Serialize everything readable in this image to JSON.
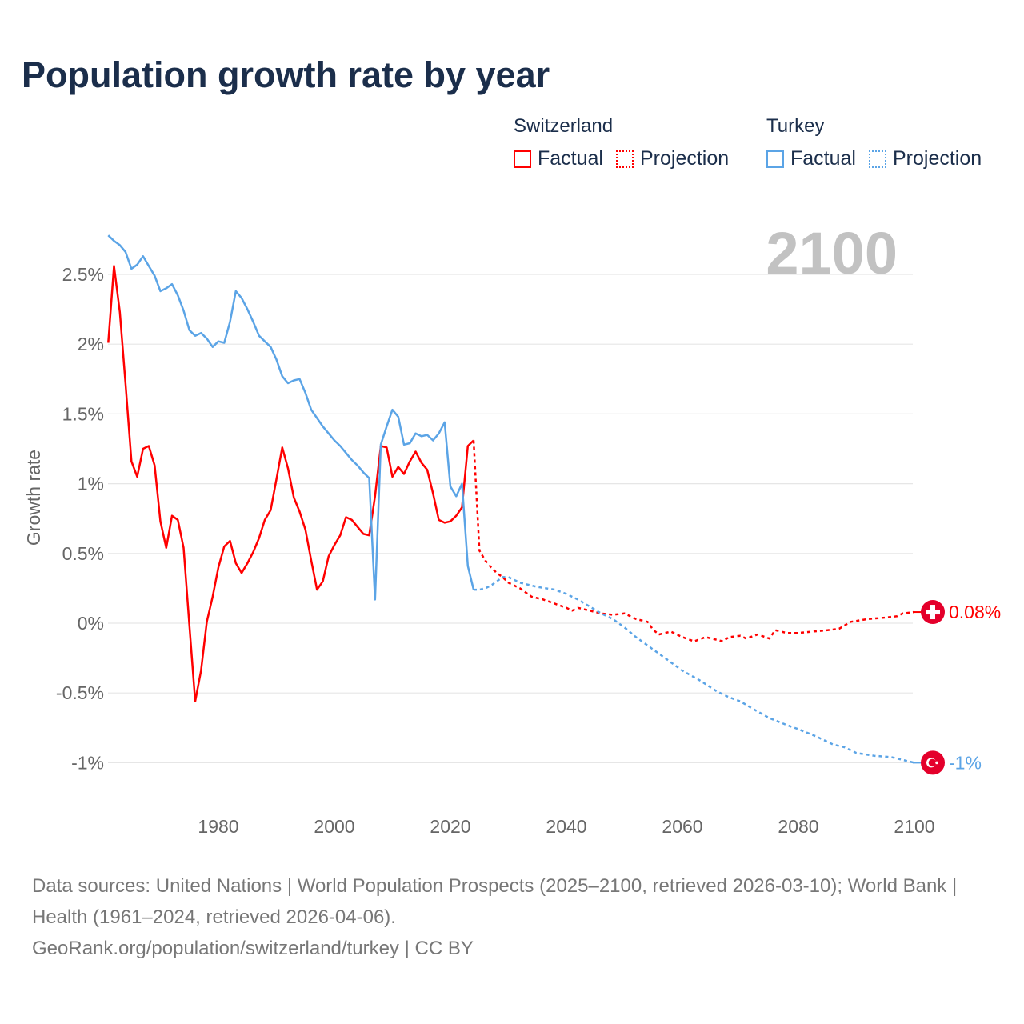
{
  "title": "Population growth rate by year",
  "legend": {
    "groups": [
      {
        "name": "Switzerland",
        "factual": "Factual",
        "projection": "Projection",
        "color": "#ff0000"
      },
      {
        "name": "Turkey",
        "factual": "Factual",
        "projection": "Projection",
        "color": "#5ba4e6"
      }
    ]
  },
  "year_watermark": "2100",
  "footer": {
    "sources": "Data sources: United Nations | World Population Prospects (2025–2100, retrieved 2026-03-10); World Bank | Health (1961–2024, retrieved 2026-04-06).",
    "credit": "GeoRank.org/population/switzerland/turkey | CC BY"
  },
  "chart_data": {
    "type": "line",
    "title": "Population growth rate by year",
    "xlabel": "",
    "ylabel": "Growth rate",
    "xlim": [
      1961,
      2100
    ],
    "ylim": [
      -1.1,
      2.8
    ],
    "x_ticks": [
      1980,
      2000,
      2020,
      2040,
      2060,
      2080,
      2100
    ],
    "x_tick_labels": [
      "1980",
      "2000",
      "2020",
      "2040",
      "2060",
      "2080",
      "2100"
    ],
    "y_ticks": [
      -1,
      -0.5,
      0,
      0.5,
      1,
      1.5,
      2,
      2.5
    ],
    "y_tick_labels": [
      "-1%",
      "-0.5%",
      "0%",
      "0.5%",
      "1%",
      "1.5%",
      "2%",
      "2.5%"
    ],
    "grid": true,
    "series": [
      {
        "name": "Switzerland",
        "kind": "Factual",
        "color": "#ff0000",
        "dashed": false,
        "x_start": 1961,
        "values": [
          2.01,
          2.56,
          2.23,
          1.71,
          1.16,
          1.05,
          1.25,
          1.27,
          1.13,
          0.73,
          0.54,
          0.77,
          0.74,
          0.54,
          -0.02,
          -0.56,
          -0.34,
          0.01,
          0.19,
          0.4,
          0.55,
          0.59,
          0.43,
          0.36,
          0.43,
          0.51,
          0.61,
          0.74,
          0.81,
          1.03,
          1.26,
          1.11,
          0.9,
          0.8,
          0.67,
          0.45,
          0.24,
          0.3,
          0.48,
          0.56,
          0.63,
          0.76,
          0.74,
          0.69,
          0.64,
          0.63,
          0.91,
          1.27,
          1.26,
          1.05,
          1.12,
          1.07,
          1.16,
          1.23,
          1.15,
          1.1,
          0.93,
          0.74,
          0.72,
          0.73,
          0.77,
          0.83,
          1.27,
          1.31
        ]
      },
      {
        "name": "Switzerland",
        "kind": "Projection",
        "color": "#ff0000",
        "dashed": true,
        "x": [
          2024,
          2025,
          2026,
          2027,
          2028,
          2029,
          2030,
          2032,
          2034,
          2036,
          2038,
          2040,
          2041,
          2042,
          2044,
          2046,
          2048,
          2050,
          2052,
          2054,
          2055,
          2056,
          2058,
          2060,
          2062,
          2064,
          2066,
          2067,
          2068,
          2070,
          2071,
          2073,
          2075,
          2076,
          2078,
          2080,
          2085,
          2087,
          2089,
          2092,
          2095,
          2097,
          2098,
          2100
        ],
        "y": [
          1.31,
          0.52,
          0.45,
          0.4,
          0.36,
          0.33,
          0.29,
          0.25,
          0.19,
          0.17,
          0.14,
          0.11,
          0.09,
          0.11,
          0.09,
          0.07,
          0.06,
          0.07,
          0.03,
          0.01,
          -0.05,
          -0.08,
          -0.06,
          -0.1,
          -0.13,
          -0.1,
          -0.12,
          -0.13,
          -0.1,
          -0.09,
          -0.11,
          -0.08,
          -0.11,
          -0.05,
          -0.07,
          -0.07,
          -0.05,
          -0.04,
          0.01,
          0.03,
          0.04,
          0.05,
          0.07,
          0.08
        ]
      },
      {
        "name": "Turkey",
        "kind": "Factual",
        "color": "#5ba4e6",
        "dashed": false,
        "x_start": 1961,
        "values": [
          2.78,
          2.74,
          2.71,
          2.66,
          2.54,
          2.57,
          2.63,
          2.56,
          2.49,
          2.38,
          2.4,
          2.43,
          2.35,
          2.24,
          2.1,
          2.06,
          2.08,
          2.04,
          1.98,
          2.02,
          2.01,
          2.16,
          2.38,
          2.33,
          2.25,
          2.16,
          2.06,
          2.02,
          1.98,
          1.89,
          1.77,
          1.72,
          1.74,
          1.75,
          1.65,
          1.53,
          1.47,
          1.41,
          1.36,
          1.31,
          1.27,
          1.22,
          1.17,
          1.13,
          1.08,
          1.04,
          0.17,
          1.28,
          1.41,
          1.53,
          1.48,
          1.28,
          1.29,
          1.36,
          1.34,
          1.35,
          1.31,
          1.36,
          1.44,
          0.98,
          0.91,
          1.0,
          0.41,
          0.24
        ]
      },
      {
        "name": "Turkey",
        "kind": "Projection",
        "color": "#5ba4e6",
        "dashed": true,
        "x": [
          2024,
          2025,
          2026,
          2027,
          2028,
          2029,
          2030,
          2031,
          2032,
          2035,
          2038,
          2040,
          2042,
          2044,
          2046,
          2048,
          2050,
          2052,
          2055,
          2058,
          2060,
          2063,
          2066,
          2068,
          2070,
          2072,
          2075,
          2078,
          2080,
          2083,
          2086,
          2088,
          2090,
          2093,
          2096,
          2100
        ],
        "y": [
          0.24,
          0.24,
          0.25,
          0.27,
          0.3,
          0.33,
          0.33,
          0.31,
          0.29,
          0.26,
          0.24,
          0.21,
          0.17,
          0.12,
          0.07,
          0.03,
          -0.03,
          -0.1,
          -0.19,
          -0.28,
          -0.34,
          -0.41,
          -0.49,
          -0.53,
          -0.56,
          -0.61,
          -0.68,
          -0.73,
          -0.76,
          -0.81,
          -0.87,
          -0.89,
          -0.93,
          -0.95,
          -0.96,
          -1.0
        ]
      }
    ],
    "end_labels": [
      {
        "name": "Switzerland",
        "value": 0.08,
        "text": "0.08%",
        "color": "#ff0000",
        "flag": "swiss-flag"
      },
      {
        "name": "Turkey",
        "value": -1.0,
        "text": "-1%",
        "color": "#5ba4e6",
        "flag": "turkish-flag"
      }
    ]
  }
}
